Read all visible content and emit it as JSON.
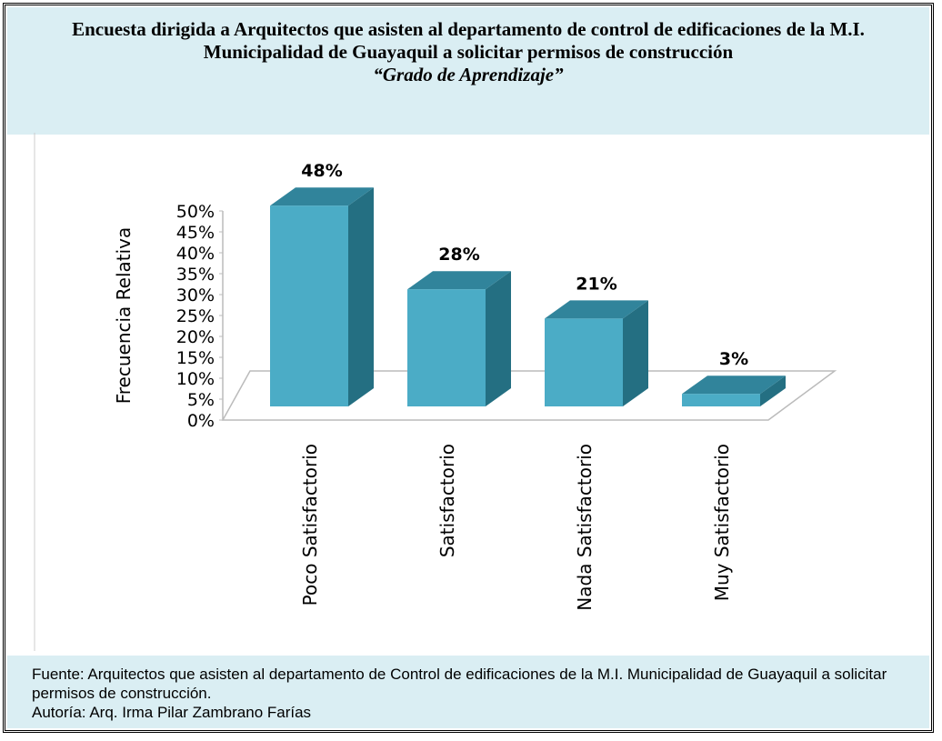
{
  "chart_data": {
    "type": "bar",
    "title": "Encuesta dirigida a Arquitectos que asisten al departamento de control de edificaciones de la M.I. Municipalidad de Guayaquil a solicitar permisos de construcción",
    "subtitle": "“Grado de Aprendizaje”",
    "y_label": "Frecuencia Relativa",
    "categories": [
      "Poco Satisfactorio",
      "Satisfactorio",
      "Nada Satisfactorio",
      "Muy Satisfactorio"
    ],
    "values": [
      48,
      28,
      21,
      3
    ],
    "value_labels": [
      "48%",
      "28%",
      "21%",
      "3%"
    ],
    "color": "#4bacc6",
    "ylim": [
      0,
      50
    ],
    "yticks": [
      {
        "value": 0,
        "label": "0%"
      },
      {
        "value": 5,
        "label": "5%"
      },
      {
        "value": 10,
        "label": "10%"
      },
      {
        "value": 15,
        "label": "15%"
      },
      {
        "value": 20,
        "label": "20%"
      },
      {
        "value": 25,
        "label": "25%"
      },
      {
        "value": 30,
        "label": "30%"
      },
      {
        "value": 35,
        "label": "35%"
      },
      {
        "value": 40,
        "label": "40%"
      },
      {
        "value": 45,
        "label": "45%"
      },
      {
        "value": 50,
        "label": "50%"
      }
    ]
  },
  "footer": {
    "source": "Fuente: Arquitectos que asisten al departamento de Control de edificaciones de la M.I. Municipalidad de Guayaquil a solicitar permisos de construcción.",
    "author": "Autoría: Arq. Irma Pilar Zambrano Farías"
  }
}
